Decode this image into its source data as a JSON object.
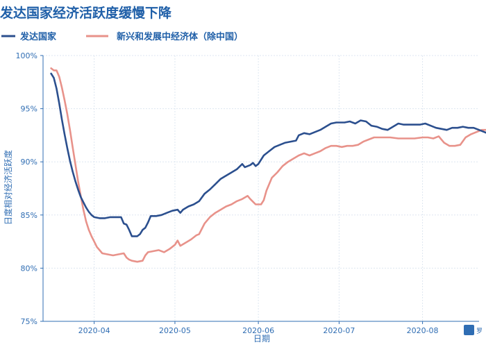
{
  "chart_data": {
    "type": "line",
    "title": "发达国家经济活跃度缓慢下降",
    "xlabel": "日期",
    "ylabel": "日度相对经济活跃度",
    "x_tick_labels": [
      "2020-04",
      "2020-05",
      "2020-06",
      "2020-07",
      "2020-08"
    ],
    "y_tick_labels": [
      "75%",
      "80%",
      "85%",
      "90%",
      "95%",
      "100%"
    ],
    "x_range": [
      "2020-03-13",
      "2020-08-22"
    ],
    "ylim": [
      75,
      100
    ],
    "grid": true,
    "legend_position": "top-left",
    "series": [
      {
        "name": "发达国家",
        "color": "#2b4f8e",
        "points": [
          [
            "2020-03-16",
            98.3
          ],
          [
            "2020-03-17",
            97.9
          ],
          [
            "2020-03-18",
            96.9
          ],
          [
            "2020-03-19",
            95.5
          ],
          [
            "2020-03-20",
            94.0
          ],
          [
            "2020-03-21",
            92.6
          ],
          [
            "2020-03-22",
            91.3
          ],
          [
            "2020-03-23",
            90.1
          ],
          [
            "2020-03-24",
            89.1
          ],
          [
            "2020-03-25",
            88.2
          ],
          [
            "2020-03-26",
            87.4
          ],
          [
            "2020-03-27",
            86.7
          ],
          [
            "2020-03-28",
            86.2
          ],
          [
            "2020-03-29",
            85.7
          ],
          [
            "2020-03-30",
            85.3
          ],
          [
            "2020-03-31",
            85.0
          ],
          [
            "2020-04-01",
            84.8
          ],
          [
            "2020-04-03",
            84.7
          ],
          [
            "2020-04-05",
            84.7
          ],
          [
            "2020-04-07",
            84.8
          ],
          [
            "2020-04-09",
            84.8
          ],
          [
            "2020-04-11",
            84.8
          ],
          [
            "2020-04-12",
            84.2
          ],
          [
            "2020-04-13",
            84.1
          ],
          [
            "2020-04-14",
            83.6
          ],
          [
            "2020-04-15",
            83.0
          ],
          [
            "2020-04-17",
            83.0
          ],
          [
            "2020-04-18",
            83.2
          ],
          [
            "2020-04-19",
            83.6
          ],
          [
            "2020-04-20",
            83.8
          ],
          [
            "2020-04-21",
            84.3
          ],
          [
            "2020-04-22",
            84.9
          ],
          [
            "2020-04-24",
            84.9
          ],
          [
            "2020-04-26",
            85.0
          ],
          [
            "2020-04-28",
            85.2
          ],
          [
            "2020-04-30",
            85.4
          ],
          [
            "2020-05-02",
            85.5
          ],
          [
            "2020-05-03",
            85.2
          ],
          [
            "2020-05-04",
            85.5
          ],
          [
            "2020-05-06",
            85.8
          ],
          [
            "2020-05-08",
            86.0
          ],
          [
            "2020-05-10",
            86.3
          ],
          [
            "2020-05-12",
            87.0
          ],
          [
            "2020-05-14",
            87.4
          ],
          [
            "2020-05-16",
            87.9
          ],
          [
            "2020-05-18",
            88.4
          ],
          [
            "2020-05-20",
            88.7
          ],
          [
            "2020-05-22",
            89.0
          ],
          [
            "2020-05-24",
            89.3
          ],
          [
            "2020-05-26",
            89.8
          ],
          [
            "2020-05-27",
            89.5
          ],
          [
            "2020-05-29",
            89.7
          ],
          [
            "2020-05-30",
            89.9
          ],
          [
            "2020-05-31",
            89.6
          ],
          [
            "2020-06-01",
            89.8
          ],
          [
            "2020-06-03",
            90.6
          ],
          [
            "2020-06-05",
            91.0
          ],
          [
            "2020-06-07",
            91.4
          ],
          [
            "2020-06-09",
            91.6
          ],
          [
            "2020-06-11",
            91.8
          ],
          [
            "2020-06-13",
            91.9
          ],
          [
            "2020-06-15",
            92.0
          ],
          [
            "2020-06-16",
            92.5
          ],
          [
            "2020-06-18",
            92.7
          ],
          [
            "2020-06-20",
            92.6
          ],
          [
            "2020-06-22",
            92.8
          ],
          [
            "2020-06-24",
            93.0
          ],
          [
            "2020-06-26",
            93.3
          ],
          [
            "2020-06-28",
            93.6
          ],
          [
            "2020-06-30",
            93.7
          ],
          [
            "2020-07-03",
            93.7
          ],
          [
            "2020-07-05",
            93.8
          ],
          [
            "2020-07-07",
            93.6
          ],
          [
            "2020-07-09",
            93.9
          ],
          [
            "2020-07-11",
            93.8
          ],
          [
            "2020-07-13",
            93.4
          ],
          [
            "2020-07-15",
            93.3
          ],
          [
            "2020-07-17",
            93.1
          ],
          [
            "2020-07-19",
            93.0
          ],
          [
            "2020-07-21",
            93.3
          ],
          [
            "2020-07-23",
            93.6
          ],
          [
            "2020-07-25",
            93.5
          ],
          [
            "2020-07-28",
            93.5
          ],
          [
            "2020-07-31",
            93.5
          ],
          [
            "2020-08-02",
            93.6
          ],
          [
            "2020-08-04",
            93.4
          ],
          [
            "2020-08-06",
            93.2
          ],
          [
            "2020-08-08",
            93.1
          ],
          [
            "2020-08-10",
            93.0
          ],
          [
            "2020-08-12",
            93.2
          ],
          [
            "2020-08-14",
            93.2
          ],
          [
            "2020-08-16",
            93.3
          ],
          [
            "2020-08-18",
            93.2
          ],
          [
            "2020-08-20",
            93.2
          ],
          [
            "2020-08-22",
            93.0
          ],
          [
            "2020-08-24",
            92.8
          ],
          [
            "2020-08-26",
            92.6
          ]
        ]
      },
      {
        "name": "新兴和发展中经济体（除中国）",
        "color": "#e8928a",
        "points": [
          [
            "2020-03-16",
            98.8
          ],
          [
            "2020-03-17",
            98.6
          ],
          [
            "2020-03-18",
            98.6
          ],
          [
            "2020-03-19",
            98.0
          ],
          [
            "2020-03-20",
            97.0
          ],
          [
            "2020-03-21",
            95.8
          ],
          [
            "2020-03-22",
            94.5
          ],
          [
            "2020-03-23",
            93.0
          ],
          [
            "2020-03-24",
            91.4
          ],
          [
            "2020-03-25",
            89.8
          ],
          [
            "2020-03-26",
            88.2
          ],
          [
            "2020-03-27",
            86.8
          ],
          [
            "2020-03-28",
            85.5
          ],
          [
            "2020-03-29",
            84.4
          ],
          [
            "2020-03-30",
            83.6
          ],
          [
            "2020-03-31",
            83.0
          ],
          [
            "2020-04-01",
            82.5
          ],
          [
            "2020-04-02",
            82.0
          ],
          [
            "2020-04-03",
            81.7
          ],
          [
            "2020-04-04",
            81.4
          ],
          [
            "2020-04-06",
            81.3
          ],
          [
            "2020-04-08",
            81.2
          ],
          [
            "2020-04-10",
            81.3
          ],
          [
            "2020-04-12",
            81.4
          ],
          [
            "2020-04-13",
            81.0
          ],
          [
            "2020-04-14",
            80.8
          ],
          [
            "2020-04-15",
            80.7
          ],
          [
            "2020-04-17",
            80.6
          ],
          [
            "2020-04-19",
            80.7
          ],
          [
            "2020-04-20",
            81.2
          ],
          [
            "2020-04-21",
            81.5
          ],
          [
            "2020-04-23",
            81.6
          ],
          [
            "2020-04-25",
            81.7
          ],
          [
            "2020-04-27",
            81.5
          ],
          [
            "2020-04-29",
            81.8
          ],
          [
            "2020-05-01",
            82.2
          ],
          [
            "2020-05-02",
            82.6
          ],
          [
            "2020-05-03",
            82.1
          ],
          [
            "2020-05-05",
            82.4
          ],
          [
            "2020-05-07",
            82.7
          ],
          [
            "2020-05-09",
            83.1
          ],
          [
            "2020-05-10",
            83.2
          ],
          [
            "2020-05-12",
            84.2
          ],
          [
            "2020-05-14",
            84.8
          ],
          [
            "2020-05-16",
            85.2
          ],
          [
            "2020-05-18",
            85.5
          ],
          [
            "2020-05-20",
            85.8
          ],
          [
            "2020-05-22",
            86.0
          ],
          [
            "2020-05-24",
            86.3
          ],
          [
            "2020-05-26",
            86.5
          ],
          [
            "2020-05-28",
            86.8
          ],
          [
            "2020-05-29",
            86.5
          ],
          [
            "2020-05-31",
            86.0
          ],
          [
            "2020-06-02",
            86.0
          ],
          [
            "2020-06-03",
            86.4
          ],
          [
            "2020-06-04",
            87.3
          ],
          [
            "2020-06-06",
            88.5
          ],
          [
            "2020-06-08",
            89.0
          ],
          [
            "2020-06-10",
            89.6
          ],
          [
            "2020-06-12",
            90.0
          ],
          [
            "2020-06-14",
            90.3
          ],
          [
            "2020-06-16",
            90.6
          ],
          [
            "2020-06-18",
            90.8
          ],
          [
            "2020-06-20",
            90.6
          ],
          [
            "2020-06-22",
            90.8
          ],
          [
            "2020-06-24",
            91.0
          ],
          [
            "2020-06-26",
            91.3
          ],
          [
            "2020-06-28",
            91.5
          ],
          [
            "2020-06-30",
            91.5
          ],
          [
            "2020-07-02",
            91.4
          ],
          [
            "2020-07-04",
            91.5
          ],
          [
            "2020-07-06",
            91.5
          ],
          [
            "2020-07-08",
            91.6
          ],
          [
            "2020-07-10",
            91.9
          ],
          [
            "2020-07-12",
            92.1
          ],
          [
            "2020-07-14",
            92.3
          ],
          [
            "2020-07-17",
            92.3
          ],
          [
            "2020-07-20",
            92.3
          ],
          [
            "2020-07-23",
            92.2
          ],
          [
            "2020-07-26",
            92.2
          ],
          [
            "2020-07-29",
            92.2
          ],
          [
            "2020-08-01",
            92.3
          ],
          [
            "2020-08-03",
            92.3
          ],
          [
            "2020-08-05",
            92.2
          ],
          [
            "2020-08-07",
            92.4
          ],
          [
            "2020-08-09",
            91.8
          ],
          [
            "2020-08-11",
            91.5
          ],
          [
            "2020-08-13",
            91.5
          ],
          [
            "2020-08-15",
            91.6
          ],
          [
            "2020-08-17",
            92.3
          ],
          [
            "2020-08-19",
            92.6
          ],
          [
            "2020-08-21",
            92.8
          ],
          [
            "2020-08-23",
            93.0
          ],
          [
            "2020-08-25",
            93.0
          ]
        ]
      }
    ]
  },
  "logo": {
    "text": "罗"
  }
}
